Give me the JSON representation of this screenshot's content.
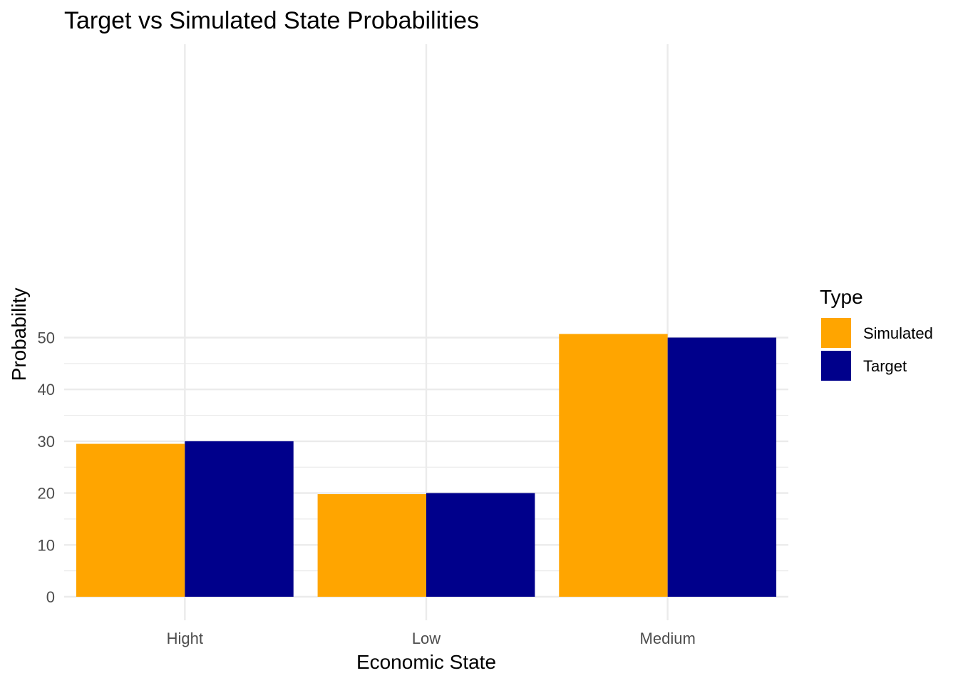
{
  "chart_data": {
    "type": "bar",
    "title": "Target vs Simulated State Probabilities",
    "xlabel": "Economic State",
    "ylabel": "Probability",
    "categories": [
      "Hight",
      "Low",
      "Medium"
    ],
    "series": [
      {
        "name": "Simulated",
        "values": [
          29.5,
          19.8,
          50.7
        ],
        "color": "#FFA500"
      },
      {
        "name": "Target",
        "values": [
          30,
          20,
          50
        ],
        "color": "#00008B"
      }
    ],
    "ylim": [
      0,
      53
    ],
    "y_ticks": [
      0,
      10,
      20,
      30,
      40,
      50
    ],
    "grid": true,
    "legend": {
      "title": "Type",
      "position": "right"
    }
  }
}
